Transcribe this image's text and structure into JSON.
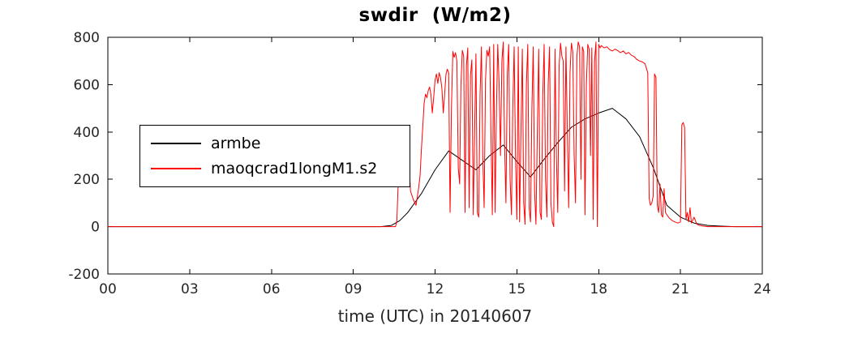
{
  "chart_data": {
    "type": "line",
    "title": "swdir  (W/m2)",
    "xlabel": "time (UTC) in 20140607",
    "ylabel": "",
    "xlim": [
      0,
      24
    ],
    "ylim": [
      -200,
      800
    ],
    "x_ticks": [
      0,
      3,
      6,
      9,
      12,
      15,
      18,
      21,
      24
    ],
    "x_tick_labels": [
      "00",
      "03",
      "06",
      "09",
      "12",
      "15",
      "18",
      "21",
      "24"
    ],
    "y_ticks": [
      -200,
      0,
      200,
      400,
      600,
      800
    ],
    "y_tick_labels": [
      "-200",
      "0",
      "200",
      "400",
      "600",
      "800"
    ],
    "grid": false,
    "legend_position": "left-middle",
    "axis_color": "#000000",
    "tick_label_color": "#262626",
    "series": [
      {
        "name": "armbe",
        "color": "#000000",
        "width": 1,
        "points": [
          [
            0,
            0
          ],
          [
            10.0,
            0
          ],
          [
            10.4,
            5
          ],
          [
            10.7,
            25
          ],
          [
            11.0,
            60
          ],
          [
            11.5,
            140
          ],
          [
            12.0,
            240
          ],
          [
            12.5,
            320
          ],
          [
            13.0,
            280
          ],
          [
            13.5,
            240
          ],
          [
            14.0,
            300
          ],
          [
            14.5,
            345
          ],
          [
            15.0,
            275
          ],
          [
            15.5,
            210
          ],
          [
            16.0,
            285
          ],
          [
            16.5,
            355
          ],
          [
            17.0,
            420
          ],
          [
            17.5,
            455
          ],
          [
            18.0,
            480
          ],
          [
            18.5,
            500
          ],
          [
            19.0,
            455
          ],
          [
            19.5,
            380
          ],
          [
            20.0,
            250
          ],
          [
            20.5,
            90
          ],
          [
            21.0,
            40
          ],
          [
            21.5,
            15
          ],
          [
            22.0,
            5
          ],
          [
            22.5,
            2
          ],
          [
            23.0,
            0
          ],
          [
            24.0,
            0
          ]
        ]
      },
      {
        "name": "maoqcrad1longM1.s2",
        "color": "#ff0000",
        "width": 1,
        "points": [
          [
            0,
            0
          ],
          [
            10.55,
            0
          ],
          [
            10.6,
            25
          ],
          [
            10.65,
            190
          ],
          [
            10.7,
            370
          ],
          [
            10.78,
            350
          ],
          [
            10.85,
            300
          ],
          [
            10.95,
            340
          ],
          [
            11.0,
            365
          ],
          [
            11.05,
            260
          ],
          [
            11.1,
            150
          ],
          [
            11.2,
            115
          ],
          [
            11.3,
            90
          ],
          [
            11.4,
            165
          ],
          [
            11.45,
            215
          ],
          [
            11.5,
            330
          ],
          [
            11.55,
            425
          ],
          [
            11.6,
            520
          ],
          [
            11.65,
            560
          ],
          [
            11.7,
            545
          ],
          [
            11.75,
            575
          ],
          [
            11.8,
            590
          ],
          [
            11.85,
            555
          ],
          [
            11.9,
            480
          ],
          [
            11.95,
            545
          ],
          [
            12.0,
            620
          ],
          [
            12.05,
            645
          ],
          [
            12.1,
            605
          ],
          [
            12.15,
            650
          ],
          [
            12.2,
            630
          ],
          [
            12.25,
            585
          ],
          [
            12.3,
            480
          ],
          [
            12.35,
            560
          ],
          [
            12.4,
            645
          ],
          [
            12.45,
            665
          ],
          [
            12.5,
            650
          ],
          [
            12.55,
            60
          ],
          [
            12.6,
            500
          ],
          [
            12.65,
            740
          ],
          [
            12.7,
            715
          ],
          [
            12.75,
            735
          ],
          [
            12.8,
            700
          ],
          [
            12.85,
            250
          ],
          [
            12.9,
            180
          ],
          [
            12.95,
            600
          ],
          [
            13.0,
            745
          ],
          [
            13.05,
            720
          ],
          [
            13.1,
            60
          ],
          [
            13.15,
            680
          ],
          [
            13.2,
            755
          ],
          [
            13.25,
            80
          ],
          [
            13.3,
            640
          ],
          [
            13.35,
            705
          ],
          [
            13.4,
            50
          ],
          [
            13.45,
            400
          ],
          [
            13.5,
            730
          ],
          [
            13.55,
            60
          ],
          [
            13.6,
            40
          ],
          [
            13.65,
            560
          ],
          [
            13.7,
            760
          ],
          [
            13.75,
            300
          ],
          [
            13.8,
            80
          ],
          [
            13.85,
            620
          ],
          [
            13.9,
            745
          ],
          [
            13.95,
            720
          ],
          [
            14.0,
            760
          ],
          [
            14.05,
            400
          ],
          [
            14.1,
            50
          ],
          [
            14.15,
            770
          ],
          [
            14.2,
            60
          ],
          [
            14.25,
            500
          ],
          [
            14.3,
            770
          ],
          [
            14.35,
            600
          ],
          [
            14.4,
            300
          ],
          [
            14.45,
            700
          ],
          [
            14.5,
            780
          ],
          [
            14.55,
            350
          ],
          [
            14.6,
            100
          ],
          [
            14.65,
            650
          ],
          [
            14.7,
            770
          ],
          [
            14.75,
            200
          ],
          [
            14.8,
            50
          ],
          [
            14.85,
            500
          ],
          [
            14.9,
            760
          ],
          [
            14.95,
            300
          ],
          [
            15.0,
            30
          ],
          [
            15.05,
            760
          ],
          [
            15.1,
            20
          ],
          [
            15.15,
            400
          ],
          [
            15.2,
            750
          ],
          [
            15.25,
            100
          ],
          [
            15.3,
            10
          ],
          [
            15.35,
            600
          ],
          [
            15.4,
            770
          ],
          [
            15.45,
            80
          ],
          [
            15.5,
            20
          ],
          [
            15.55,
            500
          ],
          [
            15.6,
            760
          ],
          [
            15.65,
            150
          ],
          [
            15.7,
            10
          ],
          [
            15.75,
            400
          ],
          [
            15.8,
            750
          ],
          [
            15.85,
            60
          ],
          [
            15.9,
            30
          ],
          [
            15.95,
            550
          ],
          [
            16.0,
            770
          ],
          [
            16.05,
            200
          ],
          [
            16.1,
            40
          ],
          [
            16.15,
            600
          ],
          [
            16.2,
            760
          ],
          [
            16.25,
            100
          ],
          [
            16.3,
            20
          ],
          [
            16.35,
            0
          ],
          [
            16.4,
            750
          ],
          [
            16.45,
            300
          ],
          [
            16.5,
            60
          ],
          [
            16.55,
            680
          ],
          [
            16.6,
            775
          ],
          [
            16.65,
            720
          ],
          [
            16.7,
            700
          ],
          [
            16.75,
            150
          ],
          [
            16.8,
            760
          ],
          [
            16.85,
            400
          ],
          [
            16.9,
            80
          ],
          [
            16.95,
            650
          ],
          [
            17.0,
            775
          ],
          [
            17.05,
            740
          ],
          [
            17.1,
            300
          ],
          [
            17.15,
            100
          ],
          [
            17.2,
            720
          ],
          [
            17.25,
            780
          ],
          [
            17.3,
            760
          ],
          [
            17.35,
            200
          ],
          [
            17.4,
            760
          ],
          [
            17.45,
            740
          ],
          [
            17.5,
            50
          ],
          [
            17.55,
            600
          ],
          [
            17.6,
            770
          ],
          [
            17.65,
            750
          ],
          [
            17.7,
            300
          ],
          [
            17.75,
            755
          ],
          [
            17.8,
            30
          ],
          [
            17.85,
            700
          ],
          [
            17.9,
            780
          ],
          [
            17.95,
            0
          ],
          [
            18.0,
            770
          ],
          [
            18.05,
            755
          ],
          [
            18.1,
            765
          ],
          [
            18.2,
            755
          ],
          [
            18.3,
            760
          ],
          [
            18.4,
            748
          ],
          [
            18.5,
            742
          ],
          [
            18.6,
            750
          ],
          [
            18.7,
            744
          ],
          [
            18.8,
            735
          ],
          [
            18.9,
            742
          ],
          [
            19.0,
            730
          ],
          [
            19.1,
            736
          ],
          [
            19.2,
            724
          ],
          [
            19.3,
            718
          ],
          [
            19.4,
            706
          ],
          [
            19.5,
            700
          ],
          [
            19.6,
            696
          ],
          [
            19.7,
            688
          ],
          [
            19.8,
            650
          ],
          [
            19.85,
            120
          ],
          [
            19.9,
            90
          ],
          [
            19.95,
            100
          ],
          [
            20.0,
            130
          ],
          [
            20.05,
            645
          ],
          [
            20.1,
            630
          ],
          [
            20.15,
            90
          ],
          [
            20.2,
            60
          ],
          [
            20.25,
            180
          ],
          [
            20.3,
            50
          ],
          [
            20.35,
            40
          ],
          [
            20.4,
            160
          ],
          [
            20.45,
            60
          ],
          [
            20.5,
            50
          ],
          [
            20.6,
            35
          ],
          [
            20.7,
            25
          ],
          [
            20.8,
            20
          ],
          [
            20.9,
            15
          ],
          [
            21.0,
            20
          ],
          [
            21.05,
            430
          ],
          [
            21.1,
            440
          ],
          [
            21.15,
            420
          ],
          [
            21.2,
            30
          ],
          [
            21.25,
            60
          ],
          [
            21.3,
            20
          ],
          [
            21.35,
            80
          ],
          [
            21.4,
            15
          ],
          [
            21.5,
            40
          ],
          [
            21.6,
            10
          ],
          [
            21.7,
            5
          ],
          [
            21.85,
            2
          ],
          [
            22.0,
            0
          ],
          [
            24.0,
            0
          ]
        ]
      }
    ]
  }
}
